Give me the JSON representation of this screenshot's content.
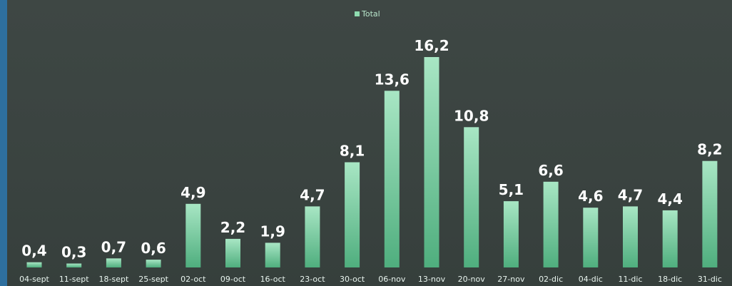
{
  "chart_data": {
    "type": "bar",
    "categories": [
      "04-sept",
      "11-sept",
      "18-sept",
      "25-sept",
      "02-oct",
      "09-oct",
      "16-oct",
      "23-oct",
      "30-oct",
      "06-nov",
      "13-nov",
      "20-nov",
      "27-nov",
      "02-dic",
      "04-dic",
      "11-dic",
      "18-dic",
      "31-dic"
    ],
    "series": [
      {
        "name": "Total",
        "values": [
          0.4,
          0.3,
          0.7,
          0.6,
          4.9,
          2.2,
          1.9,
          4.7,
          8.1,
          13.6,
          16.2,
          10.8,
          5.1,
          6.6,
          4.6,
          4.7,
          4.4,
          8.2
        ],
        "labels": [
          "0,4",
          "0,3",
          "0,7",
          "0,6",
          "4,9",
          "2,2",
          "1,9",
          "4,7",
          "8,1",
          "13,6",
          "16,2",
          "10,8",
          "5,1",
          "6,6",
          "4,6",
          "4,7",
          "4,4",
          "8,2"
        ]
      }
    ],
    "title": "",
    "xlabel": "",
    "ylabel": "",
    "ylim": [
      0,
      16.2
    ],
    "grid": false,
    "legend": "top-center",
    "colors": {
      "bar_top": "#a8e6c4",
      "bar_bottom": "#4fae7e",
      "background": "#3b4441",
      "legend_swatch": "#8fdcb0"
    }
  }
}
